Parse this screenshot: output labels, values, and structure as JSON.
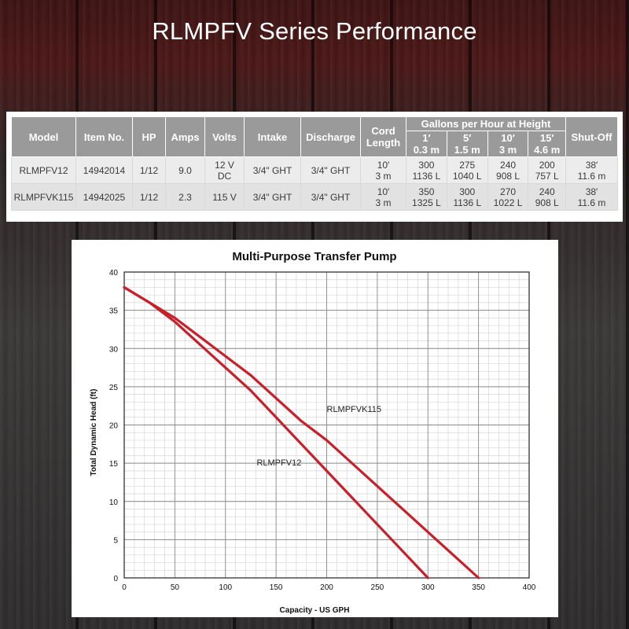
{
  "page": {
    "title": "RLMPFV Series Performance"
  },
  "table": {
    "headers": {
      "model": "Model",
      "item_no": "Item No.",
      "hp": "HP",
      "amps": "Amps",
      "volts": "Volts",
      "intake": "Intake",
      "discharge": "Discharge",
      "cord_length": "Cord Length",
      "gph_group": "Gallons per Hour at Height",
      "shutoff": "Shut-Off",
      "heights": [
        {
          "ft": "1′",
          "m": "0.3 m"
        },
        {
          "ft": "5′",
          "m": "1.5 m"
        },
        {
          "ft": "10′",
          "m": "3 m"
        },
        {
          "ft": "15′",
          "m": "4.6 m"
        }
      ]
    },
    "rows": [
      {
        "model": "RLMPFV12",
        "item_no": "14942014",
        "hp": "1/12",
        "amps": "9.0",
        "volts": "12 V DC",
        "intake": "3/4\" GHT",
        "discharge": "3/4\" GHT",
        "cord_ft": "10′",
        "cord_m": "3 m",
        "gph": [
          {
            "gph": "300",
            "lph": "1136 L"
          },
          {
            "gph": "275",
            "lph": "1040 L"
          },
          {
            "gph": "240",
            "lph": "908 L"
          },
          {
            "gph": "200",
            "lph": "757 L"
          }
        ],
        "shutoff_ft": "38′",
        "shutoff_m": "11.6 m"
      },
      {
        "model": "RLMPFVK115",
        "item_no": "14942025",
        "hp": "1/12",
        "amps": "2.3",
        "volts": "115 V",
        "intake": "3/4\" GHT",
        "discharge": "3/4\" GHT",
        "cord_ft": "10′",
        "cord_m": "3 m",
        "gph": [
          {
            "gph": "350",
            "lph": "1325 L"
          },
          {
            "gph": "300",
            "lph": "1136 L"
          },
          {
            "gph": "270",
            "lph": "1022 L"
          },
          {
            "gph": "240",
            "lph": "908 L"
          }
        ],
        "shutoff_ft": "38′",
        "shutoff_m": "11.6 m"
      }
    ]
  },
  "chart_data": {
    "type": "line",
    "title": "Multi-Purpose Transfer Pump",
    "xlabel": "Capacity - US GPH",
    "ylabel": "Total Dynamic Head (ft)",
    "xlim": [
      0,
      400
    ],
    "ylim": [
      0,
      40
    ],
    "xticks": [
      0,
      50,
      100,
      150,
      200,
      250,
      300,
      350,
      400
    ],
    "yticks": [
      0,
      5,
      10,
      15,
      20,
      25,
      30,
      35,
      40
    ],
    "grid": true,
    "series_color": "#c8202a",
    "series": [
      {
        "name": "RLMPFV12",
        "x": [
          0,
          25,
          50,
          75,
          100,
          125,
          150,
          175,
          200,
          225,
          250,
          275,
          300
        ],
        "y": [
          38,
          36,
          33.5,
          30.5,
          27.5,
          24.5,
          21,
          17.5,
          14,
          10.5,
          7,
          3.5,
          0
        ]
      },
      {
        "name": "RLMPFVK115",
        "x": [
          0,
          25,
          50,
          75,
          100,
          125,
          150,
          175,
          200,
          225,
          250,
          275,
          300,
          325,
          350
        ],
        "y": [
          38,
          36,
          34,
          31.5,
          29,
          26.5,
          23.5,
          20.5,
          18,
          15,
          12,
          9,
          6,
          3,
          0
        ]
      }
    ]
  },
  "colors": {
    "header_bg": "#9a9a9a",
    "curve": "#c8202a"
  }
}
